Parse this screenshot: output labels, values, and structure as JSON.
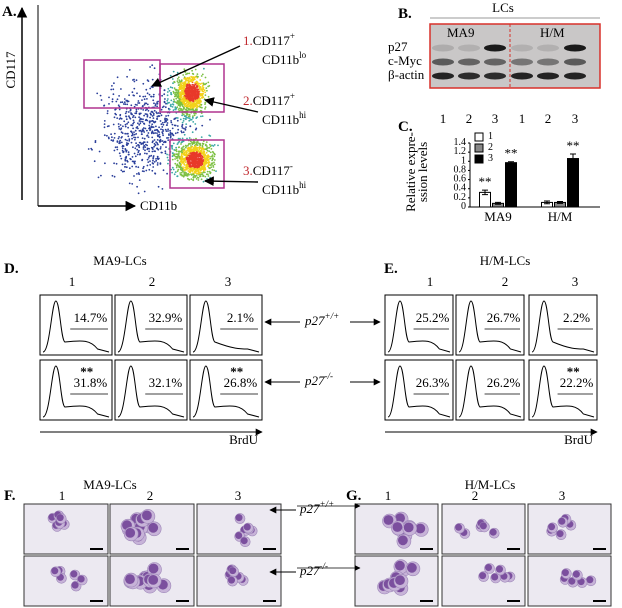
{
  "panel_a": {
    "label": "A.",
    "y_axis": "CD117",
    "x_axis": "CD11b",
    "gates": [
      {
        "number": "1.",
        "marker1": "CD117",
        "sign1": "+",
        "marker2": "CD11b",
        "sign2": "lo"
      },
      {
        "number": "2.",
        "marker1": "CD117",
        "sign1": "+",
        "marker2": "CD11b",
        "sign2": "hi"
      },
      {
        "number": "3.",
        "marker1": "CD117",
        "sign1": "-",
        "marker2": "CD11b",
        "sign2": "hi"
      }
    ]
  },
  "panel_b": {
    "label": "B.",
    "header": "LCs",
    "groups": [
      "MA9",
      "H/M"
    ],
    "proteins": [
      "p27",
      "c-Myc",
      "β-actin"
    ],
    "lanes": [
      "1",
      "2",
      "3",
      "1",
      "2",
      "3"
    ]
  },
  "chart_data": {
    "type": "bar",
    "label": "C.",
    "y_label": [
      "Relative expre-",
      "ssion levels"
    ],
    "categories": [
      "MA9",
      "H/M"
    ],
    "series": [
      {
        "name": "1",
        "color": "#ffffff",
        "values": [
          0.32,
          0.1
        ],
        "errors": [
          0.05,
          0.03
        ],
        "significance": [
          "**",
          null
        ]
      },
      {
        "name": "2",
        "color": "#888888",
        "values": [
          0.08,
          0.1
        ],
        "errors": [
          0.02,
          0.02
        ],
        "significance": [
          null,
          null
        ]
      },
      {
        "name": "3",
        "color": "#000000",
        "values": [
          0.97,
          1.06
        ],
        "errors": [
          0.02,
          0.1
        ],
        "significance": [
          "**",
          "**"
        ]
      }
    ],
    "ylim": [
      0,
      1.4
    ],
    "yticks": [
      0,
      0.2,
      0.4,
      0.6,
      0.8,
      1,
      1.2,
      1.4
    ]
  },
  "panel_d": {
    "label": "D.",
    "title": "MA9-LCs",
    "columns": [
      "1",
      "2",
      "3"
    ],
    "x_axis": "BrdU",
    "rows": [
      [
        {
          "pct": "14.7%"
        },
        {
          "pct": "32.9%"
        },
        {
          "pct": "2.1%"
        }
      ],
      [
        {
          "pct": "31.8%",
          "sig": "**"
        },
        {
          "pct": "32.1%"
        },
        {
          "pct": "26.8%",
          "sig": "**"
        }
      ]
    ]
  },
  "panel_e": {
    "label": "E.",
    "title": "H/M-LCs",
    "columns": [
      "1",
      "2",
      "3"
    ],
    "x_axis": "BrdU",
    "rows": [
      [
        {
          "pct": "25.2%"
        },
        {
          "pct": "26.7%"
        },
        {
          "pct": "2.2%"
        }
      ],
      [
        {
          "pct": "26.3%"
        },
        {
          "pct": "26.2%"
        },
        {
          "pct": "22.2%",
          "sig": "**"
        }
      ]
    ]
  },
  "genotypes": [
    {
      "gene": "p27",
      "sup": "+/+"
    },
    {
      "gene": "p27",
      "sup": "-/-"
    }
  ],
  "panel_f": {
    "label": "F.",
    "title": "MA9-LCs",
    "columns": [
      "1",
      "2",
      "3"
    ]
  },
  "panel_g": {
    "label": "G.",
    "title": "H/M-LCs",
    "columns": [
      "1",
      "2",
      "3"
    ]
  }
}
